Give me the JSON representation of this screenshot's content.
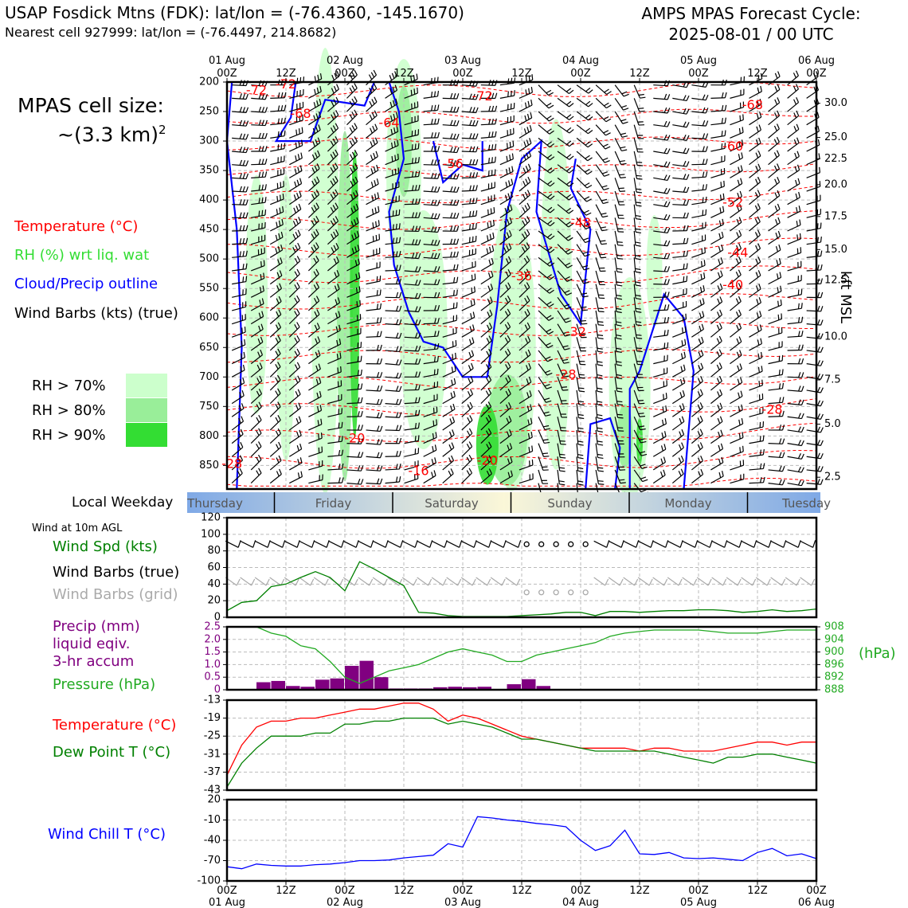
{
  "header": {
    "site_title": "USAP Fosdick Mtns (FDK): lat/lon = (-76.4360, -145.1670)",
    "nearest_cell": "Nearest cell 927999: lat/lon = (-76.4497, 214.8682)",
    "cycle_line1": "AMPS MPAS Forecast Cycle:",
    "cycle_line2": "2025-08-01 / 00 UTC"
  },
  "cell_size": {
    "label": "MPAS cell size:",
    "value": "~(3.3 km)",
    "exponent": "2"
  },
  "legend": {
    "temperature": "Temperature (°C)",
    "rh": "RH (%) wrt liq. wat",
    "cloud": "Cloud/Precip outline",
    "wind": "Wind Barbs (kts) (true)",
    "rh70": "RH > 70%",
    "rh80": "RH > 80%",
    "rh90": "RH > 90%"
  },
  "colors": {
    "temperature": "#ff0000",
    "rh": "#33dd33",
    "cloud": "#0000ff",
    "rh70": "#ccffcc",
    "rh80": "#99ee99",
    "rh90": "#33dd33",
    "precip": "#800080",
    "pressure": "#22aa22",
    "dewpoint": "#008000",
    "windchill": "#0000ff",
    "grid_barb": "#aaaaaa",
    "weekday_band": "#7fa9e6"
  },
  "time_axis": {
    "top_ticks": [
      {
        "l1": "01 Aug",
        "l2": "00Z"
      },
      {
        "l1": "",
        "l2": "12Z"
      },
      {
        "l1": "02 Aug",
        "l2": "00Z"
      },
      {
        "l1": "",
        "l2": "12Z"
      },
      {
        "l1": "03 Aug",
        "l2": "00Z"
      },
      {
        "l1": "",
        "l2": "12Z"
      },
      {
        "l1": "04 Aug",
        "l2": "00Z"
      },
      {
        "l1": "",
        "l2": "12Z"
      },
      {
        "l1": "05 Aug",
        "l2": "00Z"
      },
      {
        "l1": "",
        "l2": "12Z"
      },
      {
        "l1": "06 Aug",
        "l2": "00Z"
      }
    ],
    "bottom_ticks": [
      {
        "l1": "00Z",
        "l2": "01 Aug"
      },
      {
        "l1": "12Z",
        "l2": ""
      },
      {
        "l1": "00Z",
        "l2": "02 Aug"
      },
      {
        "l1": "12Z",
        "l2": ""
      },
      {
        "l1": "00Z",
        "l2": "03 Aug"
      },
      {
        "l1": "12Z",
        "l2": ""
      },
      {
        "l1": "00Z",
        "l2": "04 Aug"
      },
      {
        "l1": "12Z",
        "l2": ""
      },
      {
        "l1": "00Z",
        "l2": "05 Aug"
      },
      {
        "l1": "12Z",
        "l2": ""
      },
      {
        "l1": "00Z",
        "l2": "06 Aug"
      }
    ]
  },
  "weekday": {
    "label": "Local Weekday",
    "days": [
      "Thursday",
      "Friday",
      "Saturday",
      "Sunday",
      "Monday",
      "Tuesday"
    ]
  },
  "chart_data": [
    {
      "type": "heatmap",
      "title": "",
      "ylabel_right": "kft MSL",
      "x_hours": [
        0,
        120
      ],
      "pressure_ticks": [
        200,
        250,
        300,
        350,
        400,
        450,
        500,
        550,
        600,
        650,
        700,
        750,
        800,
        850
      ],
      "kft_ticks": [
        {
          "p": 236,
          "kft": "30.0"
        },
        {
          "p": 294,
          "kft": "25.0"
        },
        {
          "p": 330,
          "kft": "22.5"
        },
        {
          "p": 374,
          "kft": "20.0"
        },
        {
          "p": 428,
          "kft": "17.5"
        },
        {
          "p": 484,
          "kft": "15.0"
        },
        {
          "p": 536,
          "kft": "12.5"
        },
        {
          "p": 632,
          "kft": "10.0"
        },
        {
          "p": 705,
          "kft": "7.5"
        },
        {
          "p": 780,
          "kft": "5.0"
        },
        {
          "p": 870,
          "kft": "2.5"
        }
      ],
      "temperature_labels": [
        {
          "h": 6,
          "p": 215,
          "t": "-72"
        },
        {
          "h": 12,
          "p": 205,
          "t": "-72"
        },
        {
          "h": 15,
          "p": 255,
          "t": "-68"
        },
        {
          "h": 33,
          "p": 270,
          "t": "-64"
        },
        {
          "h": 46,
          "p": 340,
          "t": "-56"
        },
        {
          "h": 52,
          "p": 225,
          "t": "-72"
        },
        {
          "h": 107,
          "p": 240,
          "t": "-68"
        },
        {
          "h": 103,
          "p": 310,
          "t": "-60"
        },
        {
          "h": 103,
          "p": 405,
          "t": "-52"
        },
        {
          "h": 72,
          "p": 440,
          "t": "-48"
        },
        {
          "h": 104,
          "p": 490,
          "t": "-44"
        },
        {
          "h": 103,
          "p": 545,
          "t": "-40"
        },
        {
          "h": 60,
          "p": 530,
          "t": "-36"
        },
        {
          "h": 71,
          "p": 625,
          "t": "-32"
        },
        {
          "h": 69,
          "p": 697,
          "t": "-28"
        },
        {
          "h": 111,
          "p": 756,
          "t": "-28"
        },
        {
          "h": 1,
          "p": 848,
          "t": "-28"
        },
        {
          "h": 26,
          "p": 805,
          "t": "-20"
        },
        {
          "h": 53,
          "p": 843,
          "t": "-20"
        },
        {
          "h": 39,
          "p": 860,
          "t": "-16"
        }
      ]
    },
    {
      "type": "line",
      "title": "Wind at 10m AGL",
      "ylabel": "Wind Spd (kts)",
      "barb_true_label": "Wind Barbs (true)",
      "barb_grid_label": "Wind Barbs (grid)",
      "ylim": [
        0,
        120
      ],
      "yticks": [
        0,
        20,
        40,
        60,
        80,
        100,
        120
      ],
      "x": [
        0,
        3,
        6,
        9,
        12,
        15,
        18,
        21,
        24,
        27,
        30,
        33,
        36,
        39,
        42,
        45,
        48,
        51,
        54,
        57,
        60,
        63,
        66,
        69,
        72,
        75,
        78,
        81,
        84,
        87,
        90,
        93,
        96,
        99,
        102,
        105,
        108,
        111,
        114,
        117,
        120
      ],
      "values": [
        8,
        18,
        20,
        37,
        40,
        48,
        55,
        48,
        32,
        67,
        58,
        48,
        38,
        6,
        5,
        2,
        1,
        1,
        1,
        1,
        2,
        3,
        4,
        6,
        6,
        2,
        7,
        7,
        6,
        7,
        8,
        8,
        9,
        9,
        8,
        6,
        7,
        9,
        7,
        8,
        10
      ]
    },
    {
      "type": "bar",
      "ylabel": "Precip (mm)",
      "ylabel2": "liquid eqiv.",
      "ylabel3": "3-hr accum",
      "ylim": [
        0,
        2.5
      ],
      "yticks": [
        "0",
        "0.5",
        "1.0",
        "1.5",
        "2.0",
        "2.5"
      ],
      "bar_x": [
        7.5,
        10.5,
        13.5,
        16.5,
        19.5,
        22.5,
        25.5,
        28.5,
        31.5,
        34.5,
        37.5,
        40.5,
        43.5,
        46.5,
        49.5,
        52.5,
        55.5,
        58.5,
        61.5,
        64.5,
        67.5,
        70.5,
        73.5,
        76.5,
        79.5,
        82.5,
        85.5,
        88.5
      ],
      "values": [
        0.3,
        0.35,
        0.15,
        0.12,
        0.4,
        0.45,
        0.95,
        1.15,
        0.5,
        0.05,
        0.05,
        0.05,
        0.1,
        0.12,
        0.1,
        0.12,
        0.02,
        0.22,
        0.42,
        0.15,
        0.01,
        0.0,
        0.0,
        0.0,
        0.0,
        0.0,
        0.02,
        0.0
      ],
      "pressure_series": {
        "name": "Pressure (hPa)",
        "ylim": [
          888,
          908
        ],
        "yticks": [
          "888",
          "892",
          "896",
          "900",
          "904",
          "908"
        ],
        "x": [
          0,
          6,
          9,
          12,
          15,
          18,
          21,
          24,
          27,
          30,
          33,
          36,
          39,
          42,
          45,
          48,
          51,
          54,
          57,
          60,
          63,
          66,
          69,
          72,
          75,
          78,
          81,
          84,
          87,
          90,
          96,
          102,
          108,
          114,
          120
        ],
        "values": [
          908,
          908,
          906,
          905,
          902,
          901,
          897,
          892,
          890,
          892,
          894,
          895,
          896,
          898,
          900,
          901,
          900,
          899,
          897,
          897,
          899,
          900,
          901,
          902,
          903,
          905,
          906,
          906.5,
          907,
          907,
          907,
          906,
          906,
          907,
          907
        ]
      }
    },
    {
      "type": "line",
      "ylim": [
        -43,
        -13
      ],
      "yticks": [
        "-43",
        "-37",
        "-31",
        "-25",
        "-19",
        "-13"
      ],
      "x": [
        0,
        3,
        6,
        9,
        12,
        15,
        18,
        21,
        24,
        27,
        30,
        33,
        36,
        39,
        42,
        45,
        48,
        51,
        54,
        57,
        60,
        63,
        66,
        69,
        72,
        75,
        78,
        81,
        84,
        87,
        90,
        93,
        96,
        99,
        102,
        105,
        108,
        111,
        114,
        117,
        120
      ],
      "series": [
        {
          "name": "Temperature (°C)",
          "values": [
            -38,
            -28,
            -22,
            -20,
            -20,
            -19,
            -19,
            -18,
            -17,
            -16,
            -16,
            -15,
            -14,
            -14,
            -16,
            -20,
            -18,
            -19,
            -21,
            -23,
            -25,
            -26,
            -27,
            -28,
            -29,
            -29,
            -29,
            -29,
            -30,
            -29,
            -29,
            -30,
            -30,
            -30,
            -29,
            -28,
            -27,
            -27,
            -28,
            -27,
            -27
          ]
        },
        {
          "name": "Dew Point T (°C)",
          "values": [
            -42,
            -34,
            -29,
            -25,
            -25,
            -25,
            -24,
            -24,
            -21,
            -21,
            -20,
            -20,
            -19,
            -19,
            -19,
            -21,
            -20,
            -21,
            -22,
            -24,
            -26,
            -26,
            -27,
            -28,
            -29,
            -30,
            -30,
            -30,
            -30,
            -30,
            -31,
            -32,
            -33,
            -34,
            -32,
            -32,
            -31,
            -31,
            -32,
            -33,
            -34
          ]
        }
      ]
    },
    {
      "type": "line",
      "ylabel": "Wind Chill T (°C)",
      "ylim": [
        -100,
        20
      ],
      "yticks": [
        "-100",
        "-70",
        "-40",
        "-10",
        "20"
      ],
      "x": [
        0,
        3,
        6,
        9,
        12,
        15,
        18,
        21,
        24,
        27,
        30,
        33,
        36,
        39,
        42,
        45,
        48,
        51,
        54,
        57,
        60,
        63,
        66,
        69,
        72,
        75,
        78,
        81,
        84,
        87,
        90,
        93,
        96,
        99,
        102,
        105,
        108,
        111,
        114,
        117,
        120
      ],
      "values": [
        -79,
        -82,
        -75,
        -77,
        -78,
        -78,
        -76,
        -75,
        -73,
        -70,
        -70,
        -69,
        -66,
        -64,
        -62,
        -45,
        -50,
        -5,
        -7,
        -10,
        -12,
        -15,
        -17,
        -20,
        -40,
        -55,
        -48,
        -25,
        -60,
        -61,
        -58,
        -66,
        -67,
        -66,
        -68,
        -70,
        -58,
        -52,
        -63,
        -60,
        -67
      ]
    }
  ]
}
